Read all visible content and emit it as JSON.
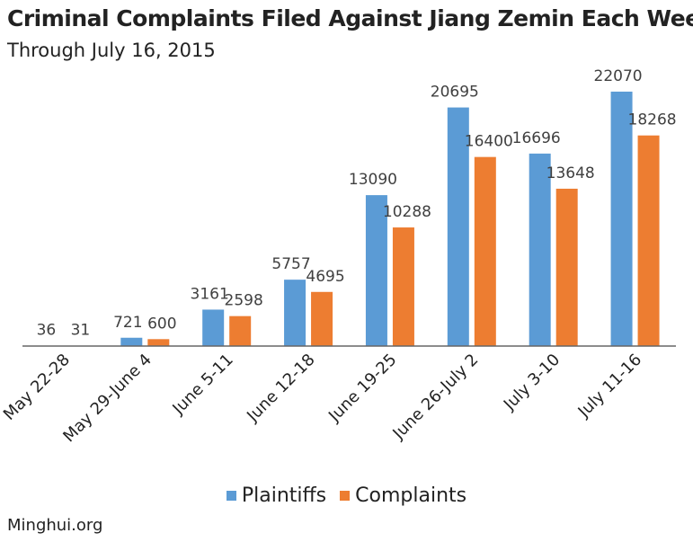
{
  "title": "Criminal Complaints Filed Against Jiang Zemin Each Week",
  "subtitle": "Through July 16, 2015",
  "source": "Minghui.org",
  "colors": {
    "plaintiffs": "#5b9bd5",
    "complaints": "#ed7d31",
    "axis": "#666666"
  },
  "chart_data": {
    "type": "bar",
    "title": "Criminal Complaints Filed Against Jiang Zemin Each Week",
    "subtitle": "Through July 16, 2015",
    "xlabel": "",
    "ylabel": "",
    "ylim": [
      0,
      23000
    ],
    "grid": false,
    "legend_position": "bottom",
    "categories": [
      "May 22-28",
      "May 29-June 4",
      "June 5-11",
      "June 12-18",
      "June 19-25",
      "June 26-July 2",
      "July 3-10",
      "July 11-16"
    ],
    "series": [
      {
        "name": "Plaintiffs",
        "color": "#5b9bd5",
        "values": [
          36,
          721,
          3161,
          5757,
          13090,
          20695,
          16696,
          22070
        ]
      },
      {
        "name": "Complaints",
        "color": "#ed7d31",
        "values": [
          31,
          600,
          2598,
          4695,
          10288,
          16400,
          13648,
          18268
        ]
      }
    ]
  }
}
